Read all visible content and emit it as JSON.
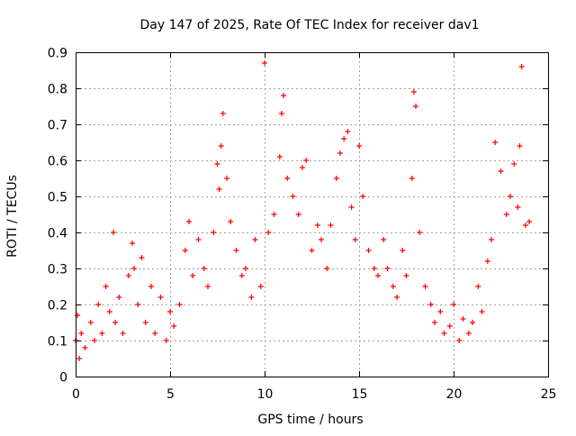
{
  "chart_data": {
    "type": "scatter",
    "title": "Day 147 of 2025, Rate Of TEC Index for receiver dav1",
    "xlabel": "GPS time / hours",
    "ylabel": "ROTI / TECUs",
    "xlim": [
      0,
      25
    ],
    "ylim": [
      0,
      0.9
    ],
    "xticks": [
      0,
      5,
      10,
      15,
      20,
      25
    ],
    "yticks": [
      0,
      0.1,
      0.2,
      0.3,
      0.4,
      0.5,
      0.6,
      0.7,
      0.8,
      0.9
    ],
    "grid": true,
    "marker": "+",
    "color": "#ff0000",
    "series": [
      {
        "x": [
          0.0,
          0.1,
          0.2,
          0.3,
          0.5,
          0.8,
          1.0,
          1.2,
          1.4,
          1.6,
          1.8,
          2.0,
          2.1,
          2.3,
          2.5,
          2.8,
          3.0,
          3.1,
          3.3,
          3.5,
          3.7,
          4.0,
          4.2,
          4.5,
          4.8,
          5.0,
          5.2,
          5.5,
          5.8,
          6.0,
          6.2,
          6.5,
          6.8,
          7.0,
          7.3,
          7.5,
          7.6,
          7.7,
          7.8,
          8.0,
          8.2,
          8.5,
          8.8,
          9.0,
          9.3,
          9.5,
          9.8,
          10.0,
          10.2,
          10.5,
          10.8,
          10.9,
          11.0,
          11.2,
          11.5,
          11.8,
          12.0,
          12.2,
          12.5,
          12.8,
          13.0,
          13.3,
          13.5,
          13.8,
          14.0,
          14.2,
          14.4,
          14.6,
          14.8,
          15.0,
          15.2,
          15.5,
          15.8,
          16.0,
          16.3,
          16.5,
          16.8,
          17.0,
          17.3,
          17.5,
          17.8,
          17.9,
          18.0,
          18.2,
          18.5,
          18.8,
          19.0,
          19.3,
          19.5,
          19.8,
          20.0,
          20.3,
          20.5,
          20.8,
          21.0,
          21.3,
          21.5,
          21.8,
          22.0,
          22.2,
          22.5,
          22.8,
          23.0,
          23.2,
          23.4,
          23.5,
          23.6,
          23.8,
          24.0
        ],
        "y": [
          0.1,
          0.17,
          0.05,
          0.12,
          0.08,
          0.15,
          0.1,
          0.2,
          0.12,
          0.25,
          0.18,
          0.4,
          0.15,
          0.22,
          0.12,
          0.28,
          0.37,
          0.3,
          0.2,
          0.33,
          0.15,
          0.25,
          0.12,
          0.22,
          0.1,
          0.18,
          0.14,
          0.2,
          0.35,
          0.43,
          0.28,
          0.38,
          0.3,
          0.25,
          0.4,
          0.59,
          0.52,
          0.64,
          0.73,
          0.55,
          0.43,
          0.35,
          0.28,
          0.3,
          0.22,
          0.38,
          0.25,
          0.87,
          0.4,
          0.45,
          0.61,
          0.73,
          0.78,
          0.55,
          0.5,
          0.45,
          0.58,
          0.6,
          0.35,
          0.42,
          0.38,
          0.3,
          0.42,
          0.55,
          0.62,
          0.66,
          0.68,
          0.47,
          0.38,
          0.64,
          0.5,
          0.35,
          0.3,
          0.28,
          0.38,
          0.3,
          0.25,
          0.22,
          0.35,
          0.28,
          0.55,
          0.79,
          0.75,
          0.4,
          0.25,
          0.2,
          0.15,
          0.18,
          0.12,
          0.14,
          0.2,
          0.1,
          0.16,
          0.12,
          0.15,
          0.25,
          0.18,
          0.32,
          0.38,
          0.65,
          0.57,
          0.45,
          0.5,
          0.59,
          0.47,
          0.64,
          0.86,
          0.42,
          0.43
        ]
      }
    ]
  }
}
